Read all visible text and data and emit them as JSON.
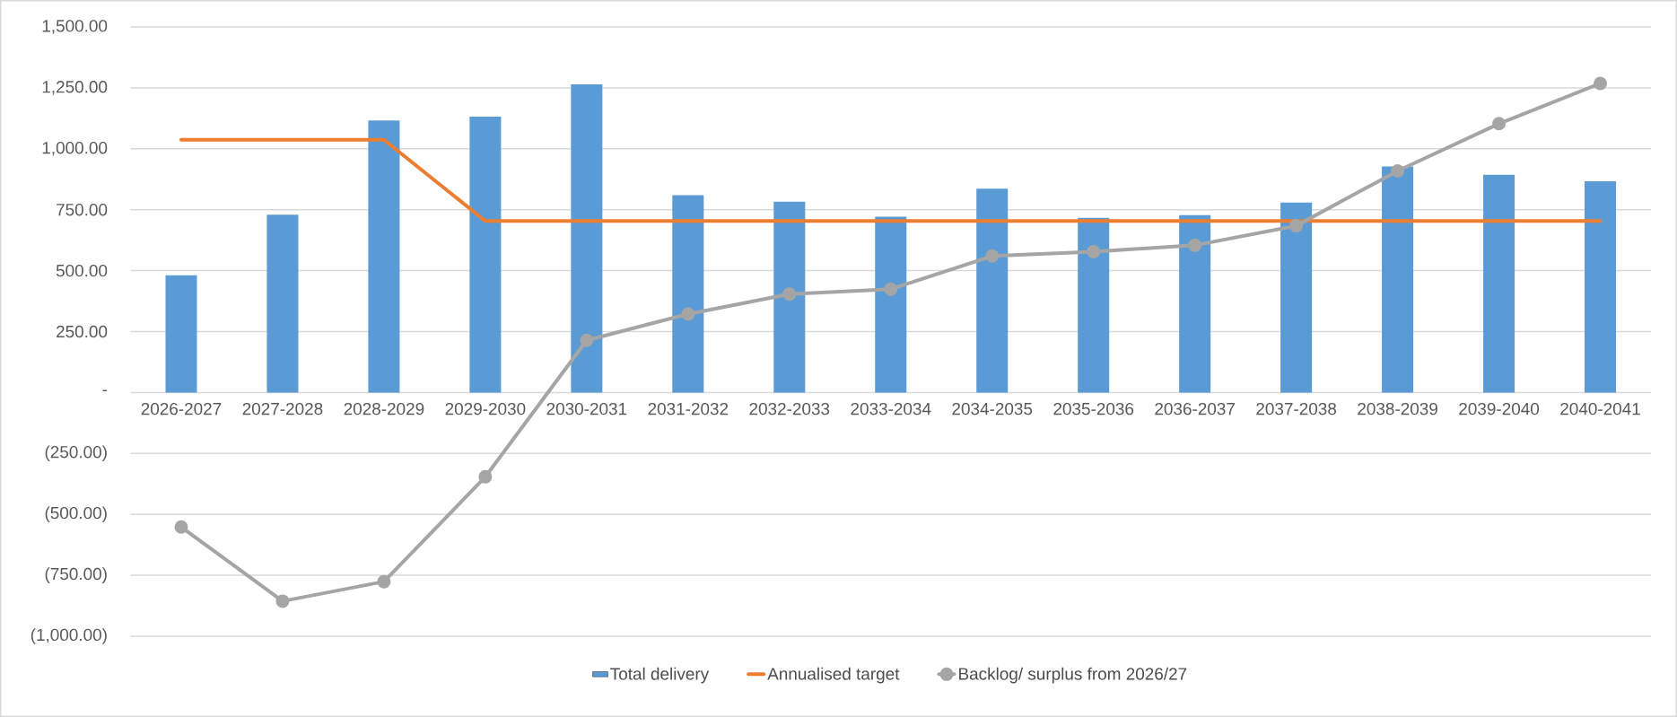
{
  "chart_data": {
    "type": "bar",
    "categories": [
      "2026-2027",
      "2027-2028",
      "2028-2029",
      "2029-2030",
      "2030-2031",
      "2031-2032",
      "2032-2033",
      "2033-2034",
      "2034-2035",
      "2035-2036",
      "2036-2037",
      "2037-2038",
      "2038-2039",
      "2039-2040",
      "2040-2041"
    ],
    "series": [
      {
        "name": "Total delivery",
        "color": "#5b9bd5",
        "values": [
          481,
          730,
          1116,
          1132,
          1264,
          810,
          783,
          721,
          836,
          717,
          728,
          779,
          927,
          893,
          867
        ]
      },
      {
        "name": "Annualised target",
        "type": "line",
        "marker": "none",
        "color": "#ed7d31",
        "values": [
          1037,
          1037,
          1037,
          704,
          704,
          704,
          704,
          704,
          704,
          704,
          704,
          704,
          704,
          704,
          704
        ]
      },
      {
        "name": "Backlog/ surplus from 2026/27",
        "type": "line",
        "marker": "circle",
        "color": "#a5a5a5",
        "values": [
          -552,
          -856,
          -776,
          -346,
          214,
          322,
          404,
          424,
          560,
          578,
          604,
          684,
          909,
          1103,
          1268
        ]
      }
    ],
    "ylim": [
      -1000,
      1500
    ],
    "yticks": [
      {
        "value": -1000,
        "label": "(1,000.00)"
      },
      {
        "value": -750,
        "label": "(750.00)"
      },
      {
        "value": -500,
        "label": "(500.00)"
      },
      {
        "value": -250,
        "label": "(250.00)"
      },
      {
        "value": 0,
        "label": "-"
      },
      {
        "value": 250,
        "label": "250.00"
      },
      {
        "value": 500,
        "label": "500.00"
      },
      {
        "value": 750,
        "label": "750.00"
      },
      {
        "value": 1000,
        "label": "1,000.00"
      },
      {
        "value": 1250,
        "label": "1,250.00"
      },
      {
        "value": 1500,
        "label": "1,500.00"
      }
    ],
    "grid": "y",
    "legend": "bottom"
  }
}
